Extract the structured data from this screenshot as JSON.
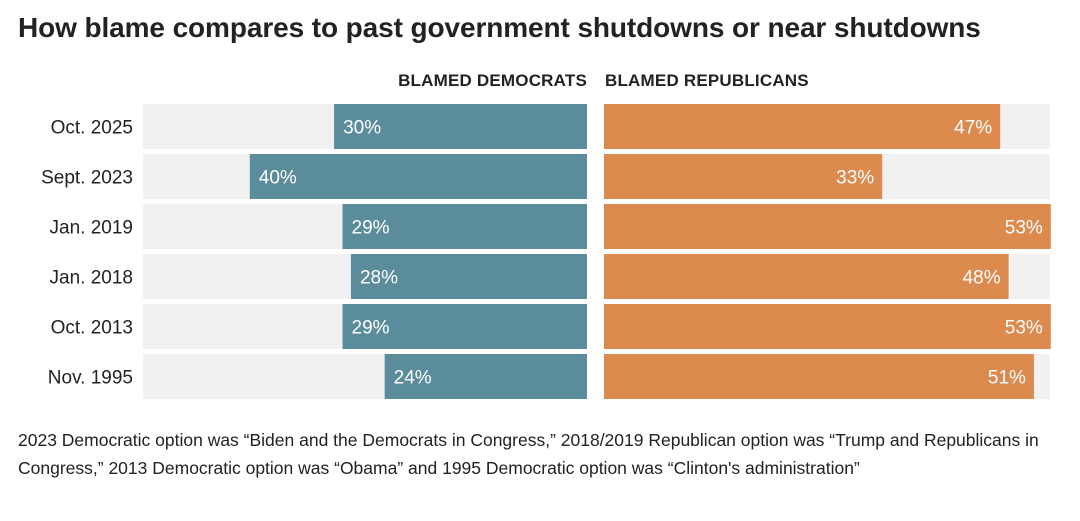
{
  "title": "How blame compares to past government shutdowns or near shutdowns",
  "headers": {
    "democrats": "BLAMED DEMOCRATS",
    "republicans": "BLAMED REPUBLICANS"
  },
  "note": "2023 Democratic option was “Biden and the Democrats in Congress,” 2018/2019 Republican option was “Trump and Republicans in Congress,” 2013 Democratic option was “Obama” and 1995 Democratic option was “Clinton's administration”",
  "colors": {
    "democrats": "#5b8c9b",
    "republicans": "#dd8a4f",
    "track": "#f1f1f1",
    "text": "#222222",
    "bar_label": "#ffffff"
  },
  "chart_data": {
    "type": "bar",
    "orientation": "horizontal-diverging",
    "categories": [
      "Oct. 2025",
      "Sept. 2023",
      "Jan. 2019",
      "Jan. 2018",
      "Oct. 2013",
      "Nov. 1995"
    ],
    "series": [
      {
        "name": "BLAMED DEMOCRATS",
        "values": [
          30,
          40,
          29,
          28,
          29,
          24
        ]
      },
      {
        "name": "BLAMED REPUBLICANS",
        "values": [
          47,
          33,
          53,
          48,
          53,
          51
        ]
      }
    ],
    "labels": {
      "democrats": [
        "30%",
        "40%",
        "29%",
        "28%",
        "29%",
        "24%"
      ],
      "republicans": [
        "47%",
        "33%",
        "53%",
        "48%",
        "53%",
        "51%"
      ]
    },
    "unit": "%",
    "xlim": [
      0,
      54
    ],
    "title": "How blame compares to past government shutdowns or near shutdowns",
    "xlabel": "",
    "ylabel": "",
    "grid": false
  }
}
